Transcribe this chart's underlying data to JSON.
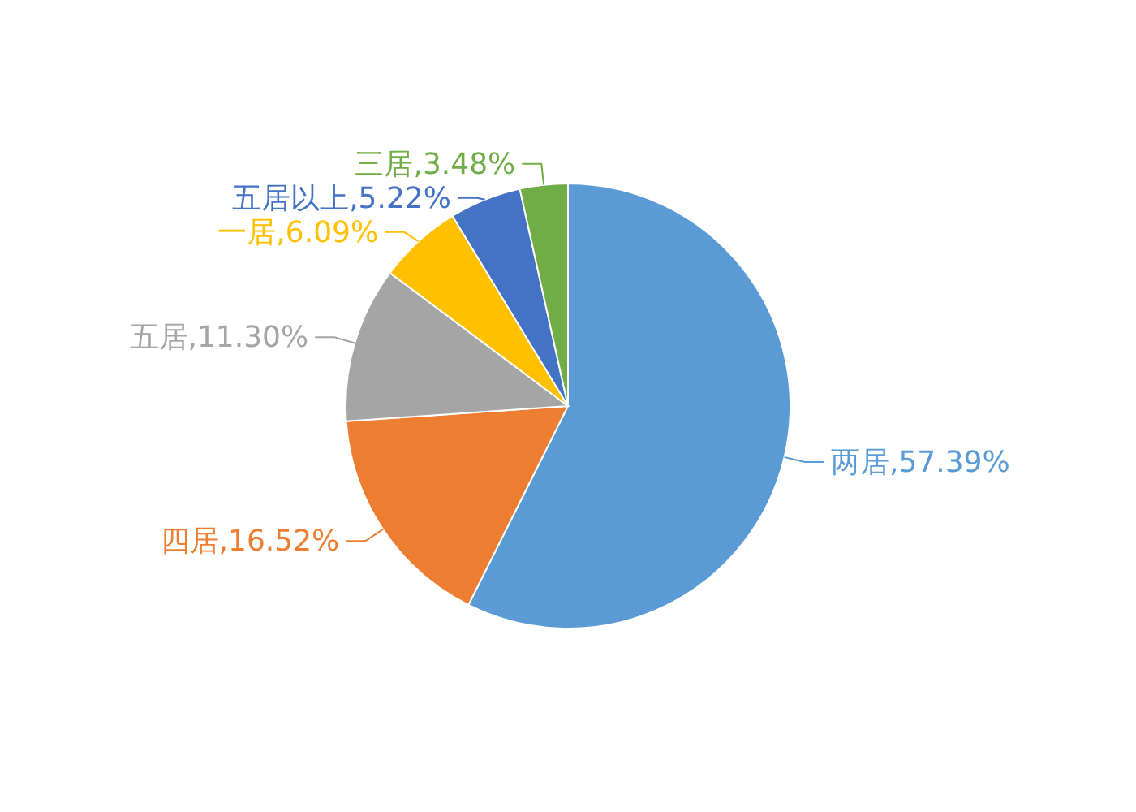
{
  "chart_data": {
    "type": "pie",
    "categories": [
      "两居",
      "四居",
      "五居",
      "一居",
      "五居以上",
      "三居"
    ],
    "values": [
      57.39,
      16.52,
      11.3,
      6.09,
      5.22,
      3.48
    ],
    "value_labels": [
      ",57.39%",
      ",16.52%",
      ",11.30%",
      ",6.09%",
      ",5.22%",
      ",3.48%"
    ],
    "colors": [
      "#5b9bd5",
      "#ed7d31",
      "#a5a5a5",
      "#ffc000",
      "#4472c4",
      "#70ad47"
    ]
  }
}
